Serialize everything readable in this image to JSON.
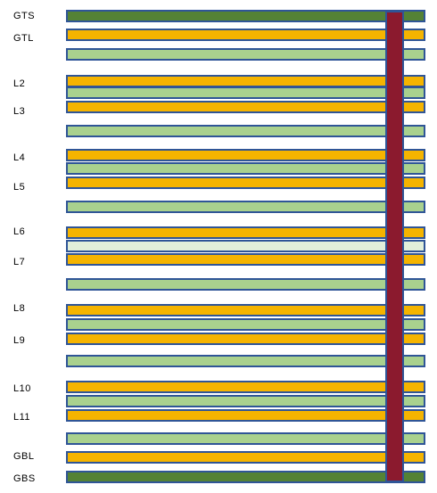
{
  "colors": {
    "outline": "#2f5597",
    "signal": "#f5b400",
    "plane": "#a9d18e",
    "plane_light": "#e2efda",
    "solder": "#548235",
    "via": "#8b1a2e"
  },
  "labels": {
    "gts": "GTS",
    "gtl": "GTL",
    "l2": "L2",
    "l3": "L3",
    "l4": "L4",
    "l5": "L5",
    "l6": "L6",
    "l7": "L7",
    "l8": "L8",
    "l9": "L9",
    "l10": "L10",
    "l11": "L11",
    "gbl": "GBL",
    "gbs": "GBS"
  },
  "layers": [
    {
      "kind": "solder"
    },
    {
      "kind": "signal"
    },
    {
      "kind": "plane"
    },
    {
      "kind": "signal"
    },
    {
      "kind": "plane"
    },
    {
      "kind": "signal"
    },
    {
      "kind": "plane"
    },
    {
      "kind": "signal"
    },
    {
      "kind": "plane"
    },
    {
      "kind": "signal"
    },
    {
      "kind": "plane"
    },
    {
      "kind": "signal"
    },
    {
      "kind": "plane_light"
    },
    {
      "kind": "signal"
    },
    {
      "kind": "plane"
    },
    {
      "kind": "signal"
    },
    {
      "kind": "plane"
    },
    {
      "kind": "signal"
    },
    {
      "kind": "plane"
    },
    {
      "kind": "signal"
    },
    {
      "kind": "plane"
    },
    {
      "kind": "signal"
    },
    {
      "kind": "plane"
    },
    {
      "kind": "signal"
    },
    {
      "kind": "solder"
    }
  ]
}
